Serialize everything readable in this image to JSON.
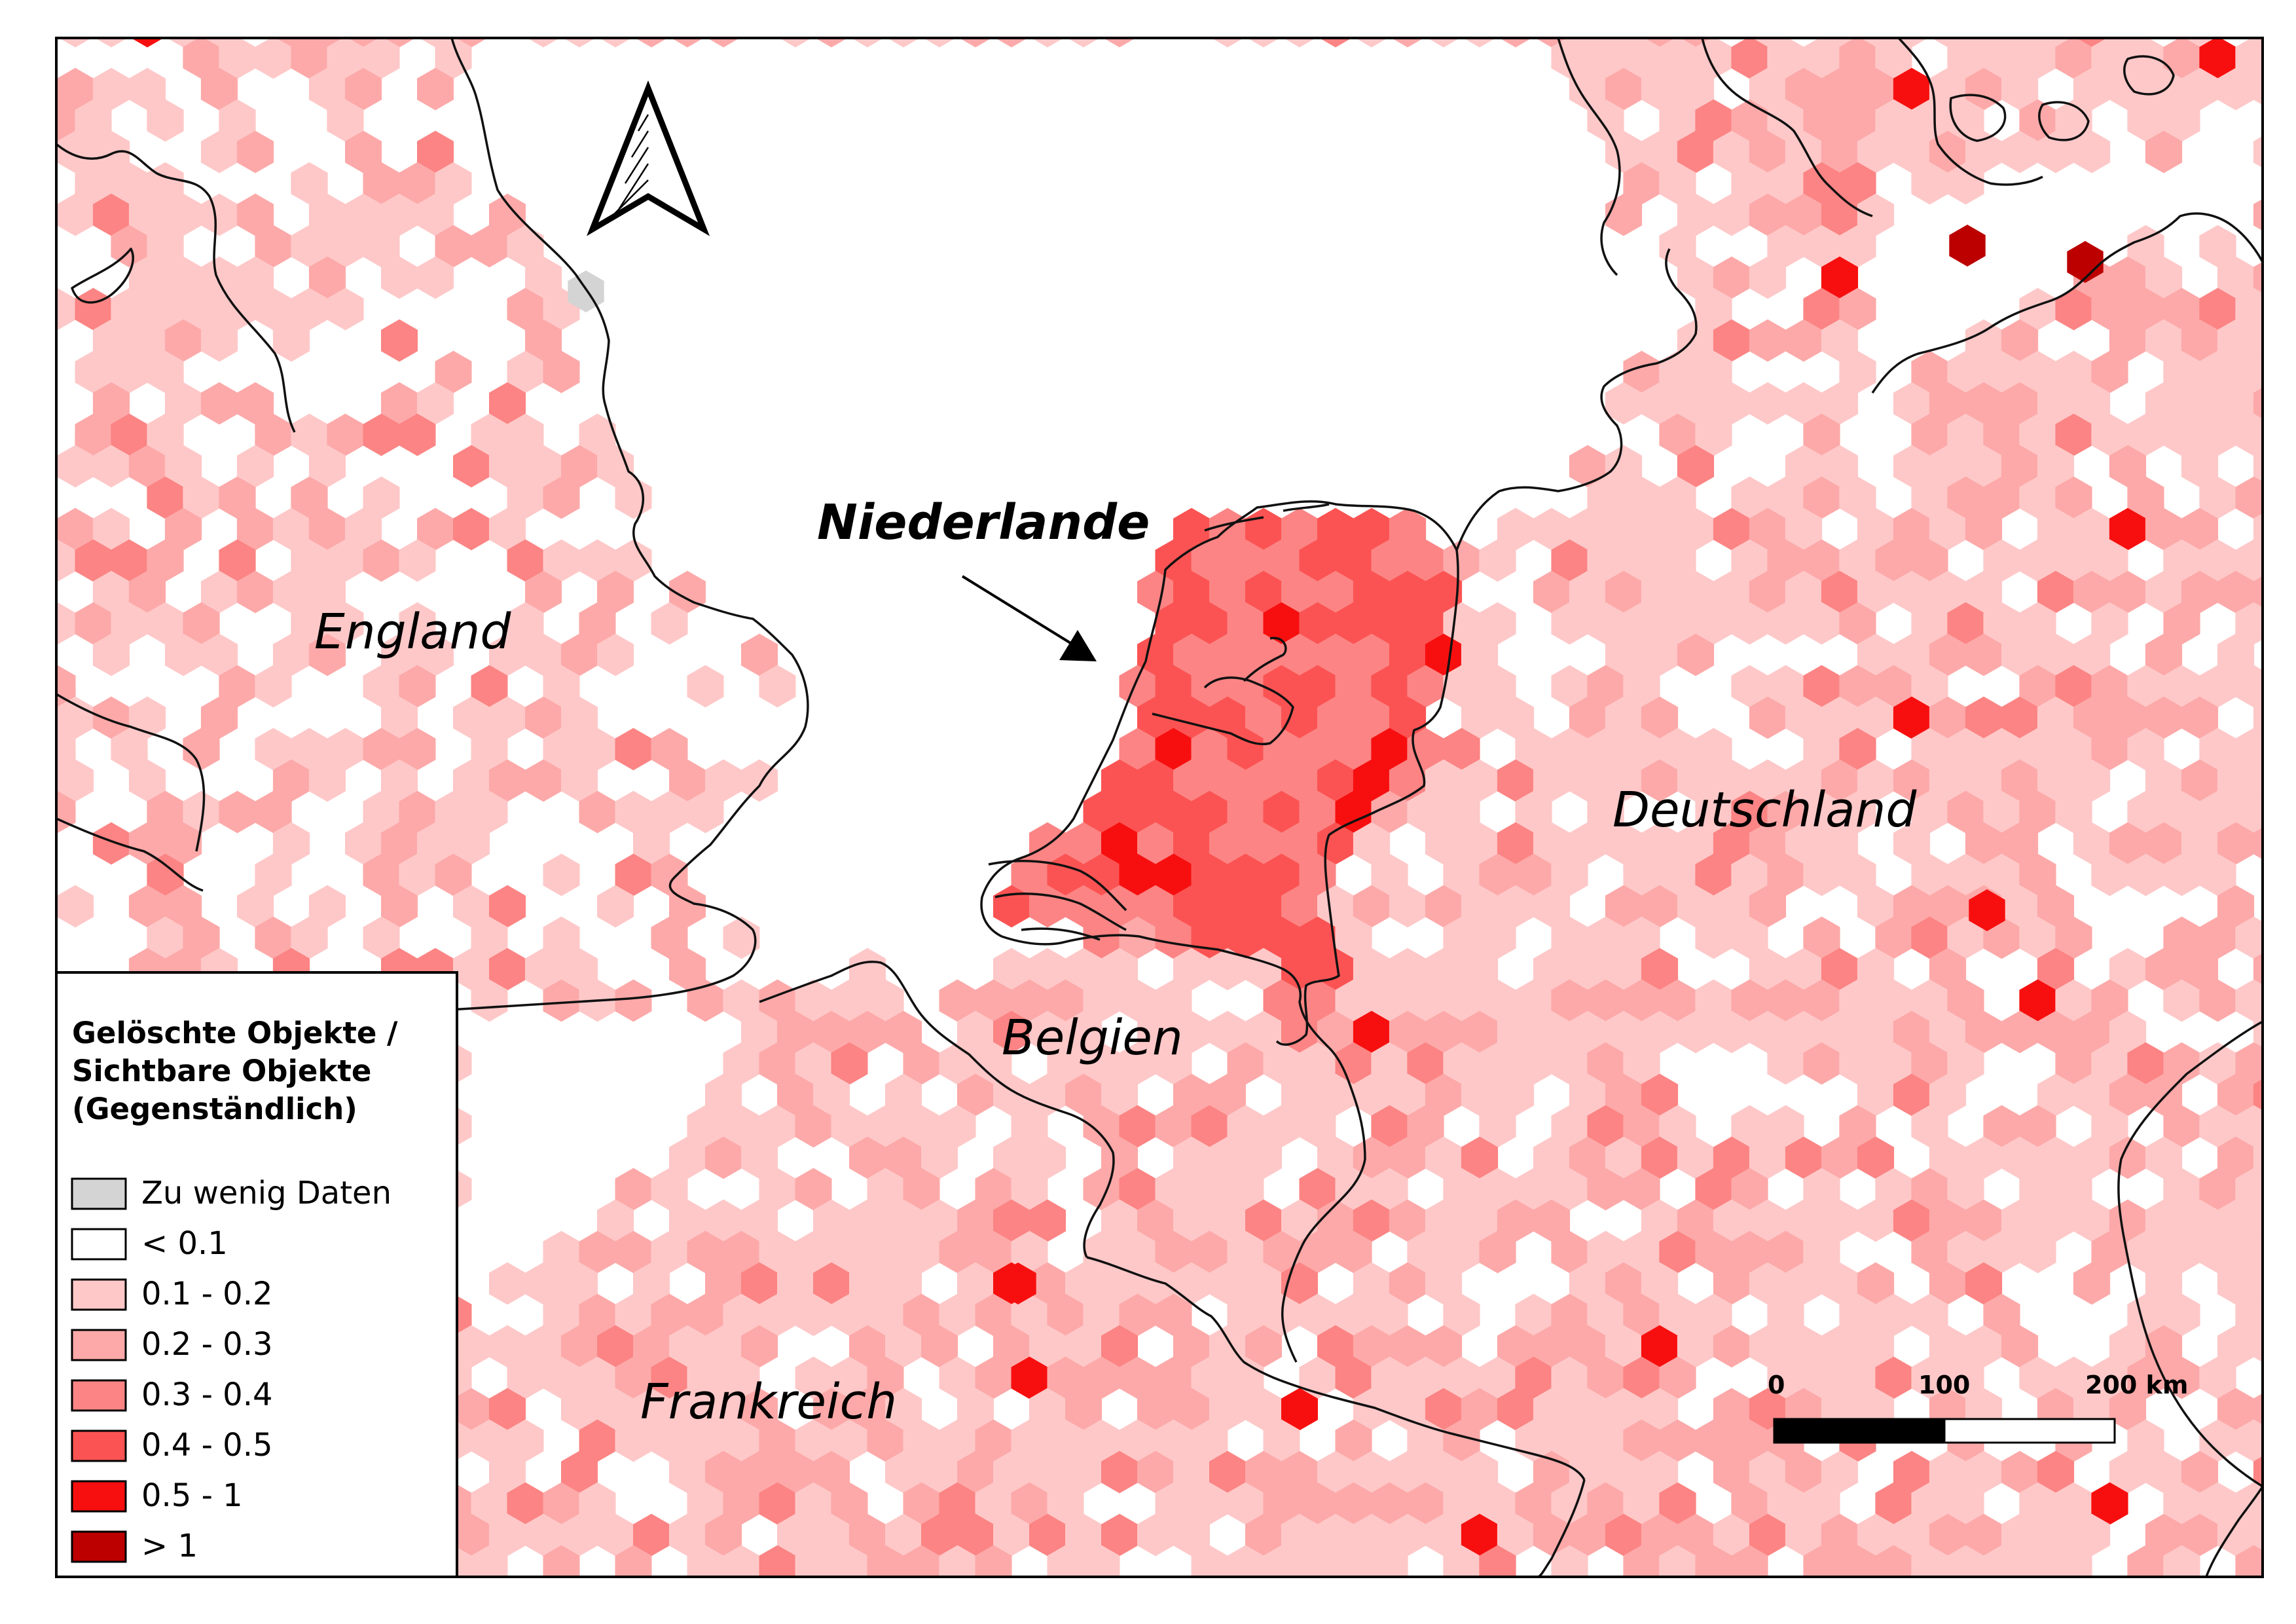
{
  "map": {
    "countries": [
      {
        "id": "england",
        "name": "England"
      },
      {
        "id": "niederlande",
        "name": "Niederlande"
      },
      {
        "id": "deutschland",
        "name": "Deutschland"
      },
      {
        "id": "belgien",
        "name": "Belgien"
      },
      {
        "id": "frankreich",
        "name": "Frankreich"
      }
    ],
    "highlighted_country": "Niederlande",
    "north_arrow": "north-arrow-icon",
    "cell_shape": "hexagon",
    "colors": {
      "no_data": "#d4d4d4",
      "lt_0_1": "#ffffff",
      "c0_1_0_2": "#fec8c8",
      "c0_2_0_3": "#fda9a9",
      "c0_3_0_4": "#fc8484",
      "c0_4_0_5": "#fb5353",
      "c0_5_1": "#f70f0f",
      "gt_1": "#bc0000",
      "border": "#000000"
    }
  },
  "legend": {
    "title_lines": [
      "Gelöschte Objekte /",
      "Sichtbare Objekte",
      "(Gegenständlich)"
    ],
    "items": [
      {
        "label": "Zu wenig Daten",
        "color": "#d4d4d4"
      },
      {
        "label": "< 0.1",
        "color": "#ffffff"
      },
      {
        "label": "0.1 - 0.2",
        "color": "#fec8c8"
      },
      {
        "label": "0.2 - 0.3",
        "color": "#fda9a9"
      },
      {
        "label": "0.3 - 0.4",
        "color": "#fc8484"
      },
      {
        "label": "0.4 - 0.5",
        "color": "#fb5353"
      },
      {
        "label": "0.5 - 1",
        "color": "#f70f0f"
      },
      {
        "label": "> 1",
        "color": "#bc0000"
      }
    ]
  },
  "scale_bar": {
    "labels": [
      "0",
      "100",
      "200 km"
    ],
    "unit": "km"
  }
}
